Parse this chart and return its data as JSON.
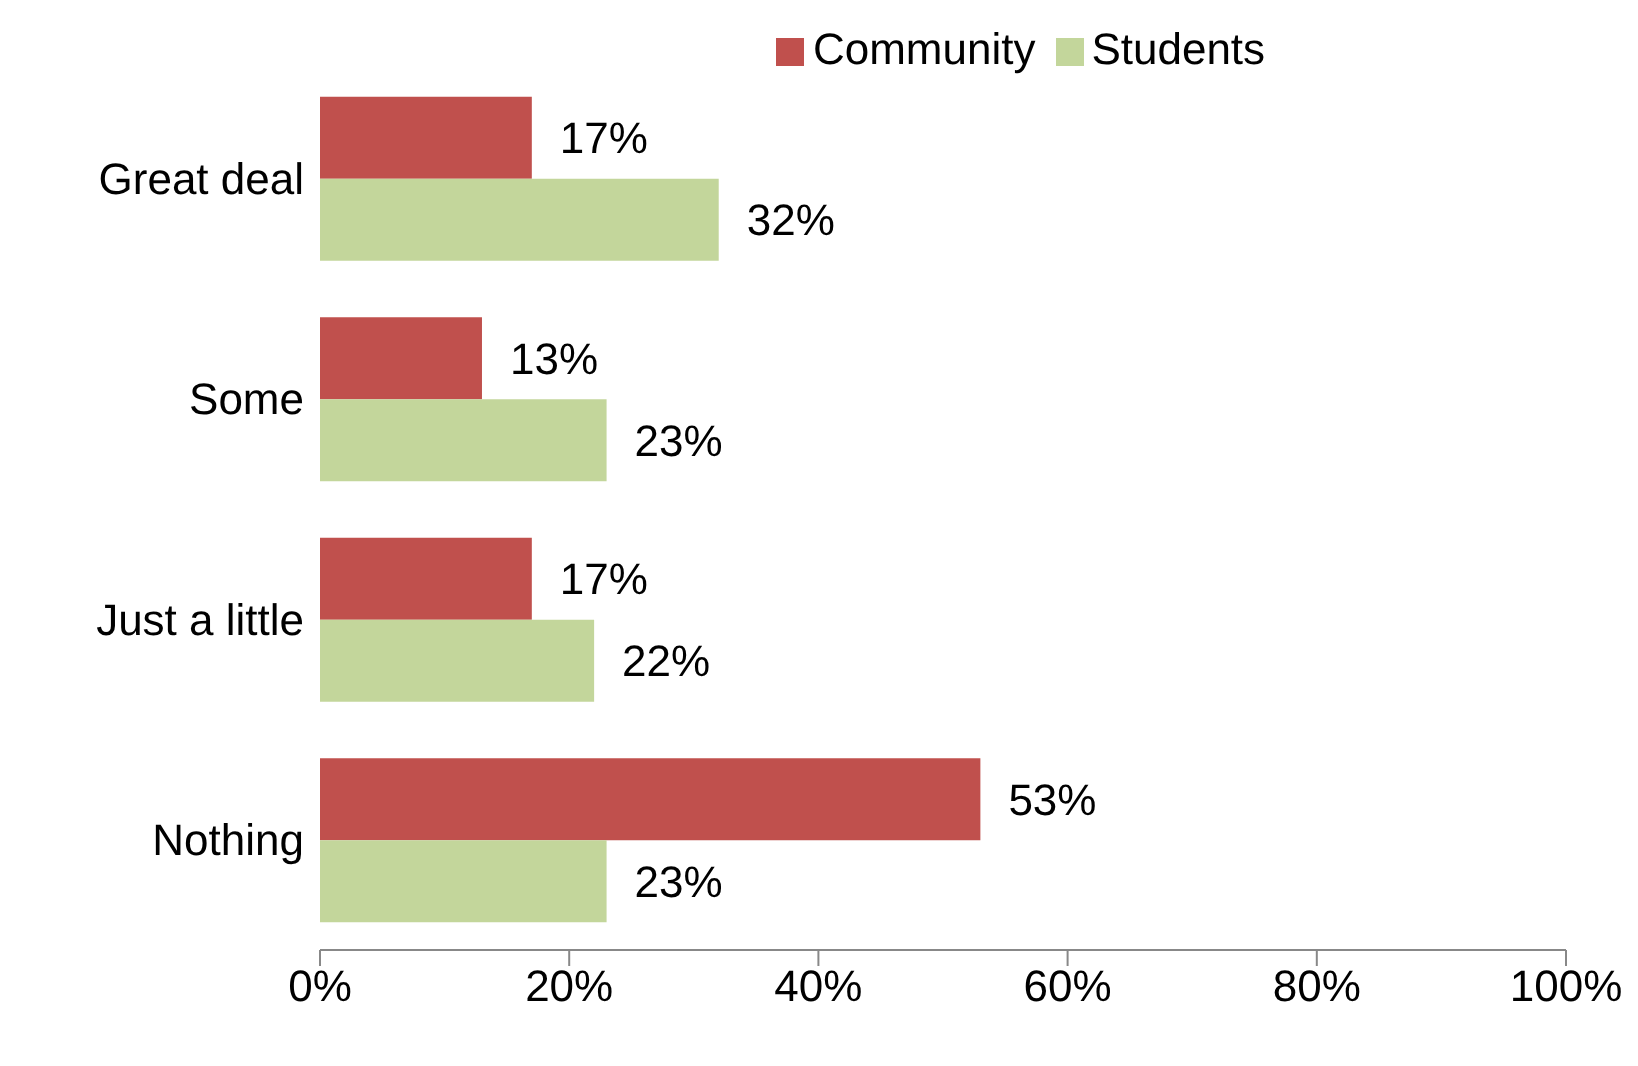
{
  "chart_data": {
    "type": "bar",
    "orientation": "horizontal",
    "categories": [
      "Great deal",
      "Some",
      "Just a little",
      "Nothing"
    ],
    "series": [
      {
        "name": "Community",
        "color": "#c0504d",
        "values": [
          17,
          13,
          17,
          53
        ],
        "value_labels": [
          "17%",
          "13%",
          "17%",
          "53%"
        ]
      },
      {
        "name": "Students",
        "color": "#c3d69b",
        "values": [
          32,
          23,
          22,
          23
        ],
        "value_labels": [
          "32%",
          "23%",
          "22%",
          "23%"
        ]
      }
    ],
    "xlim": [
      0,
      100
    ],
    "xticks": [
      {
        "value": 0,
        "label": "0%"
      },
      {
        "value": 20,
        "label": "20%"
      },
      {
        "value": 40,
        "label": "40%"
      },
      {
        "value": 60,
        "label": "60%"
      },
      {
        "value": 80,
        "label": "80%"
      },
      {
        "value": 100,
        "label": "100%"
      }
    ],
    "grid": false,
    "legend": "top"
  }
}
